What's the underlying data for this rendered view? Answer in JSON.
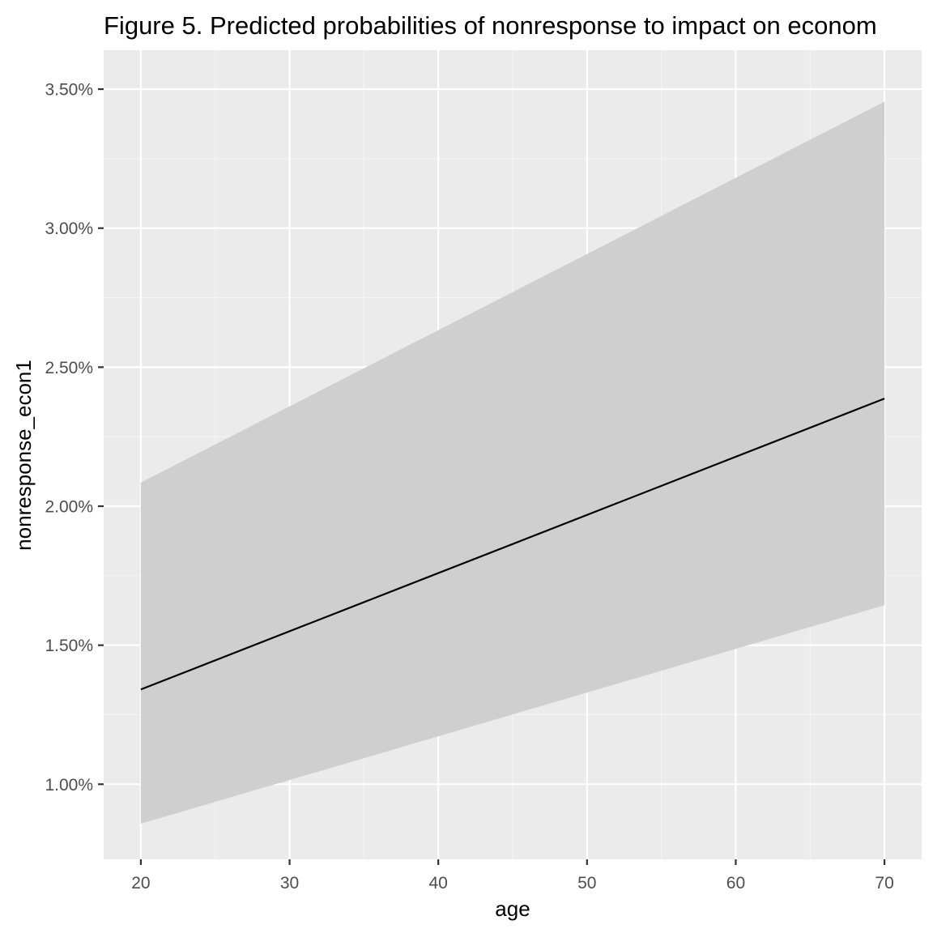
{
  "chart_data": {
    "type": "line",
    "title": "Figure 5. Predicted probabilities of nonresponse to impact on econom",
    "xlabel": "age",
    "ylabel": "nonresponse_econ1",
    "xlim": [
      17.5,
      72.5
    ],
    "ylim": [
      0.0073,
      0.0364
    ],
    "x_ticks": [
      20,
      30,
      40,
      50,
      60,
      70
    ],
    "x_minor_ticks": [
      25,
      35,
      45,
      55,
      65
    ],
    "x_tick_labels": [
      "20",
      "30",
      "40",
      "50",
      "60",
      "70"
    ],
    "y_ticks": [
      0.01,
      0.015,
      0.02,
      0.025,
      0.03,
      0.035
    ],
    "y_minor_ticks": [
      0.0125,
      0.0175,
      0.0225,
      0.0275,
      0.0325
    ],
    "y_tick_labels": [
      "1.00%",
      "1.50%",
      "2.00%",
      "2.50%",
      "3.00%",
      "3.50%"
    ],
    "grid": true,
    "legend": "none",
    "series": [
      {
        "name": "predicted",
        "x": [
          20,
          70
        ],
        "y": [
          0.01341,
          0.02387
        ],
        "lower": [
          0.00858,
          0.01644
        ],
        "upper": [
          0.02085,
          0.03455
        ]
      }
    ],
    "colors": {
      "panel_background": "#ebebeb",
      "grid_major": "#ffffff",
      "grid_minor": "#f5f5f5",
      "line": "#000000",
      "ribbon": "#cfcfcf",
      "tick": "#333333"
    }
  }
}
